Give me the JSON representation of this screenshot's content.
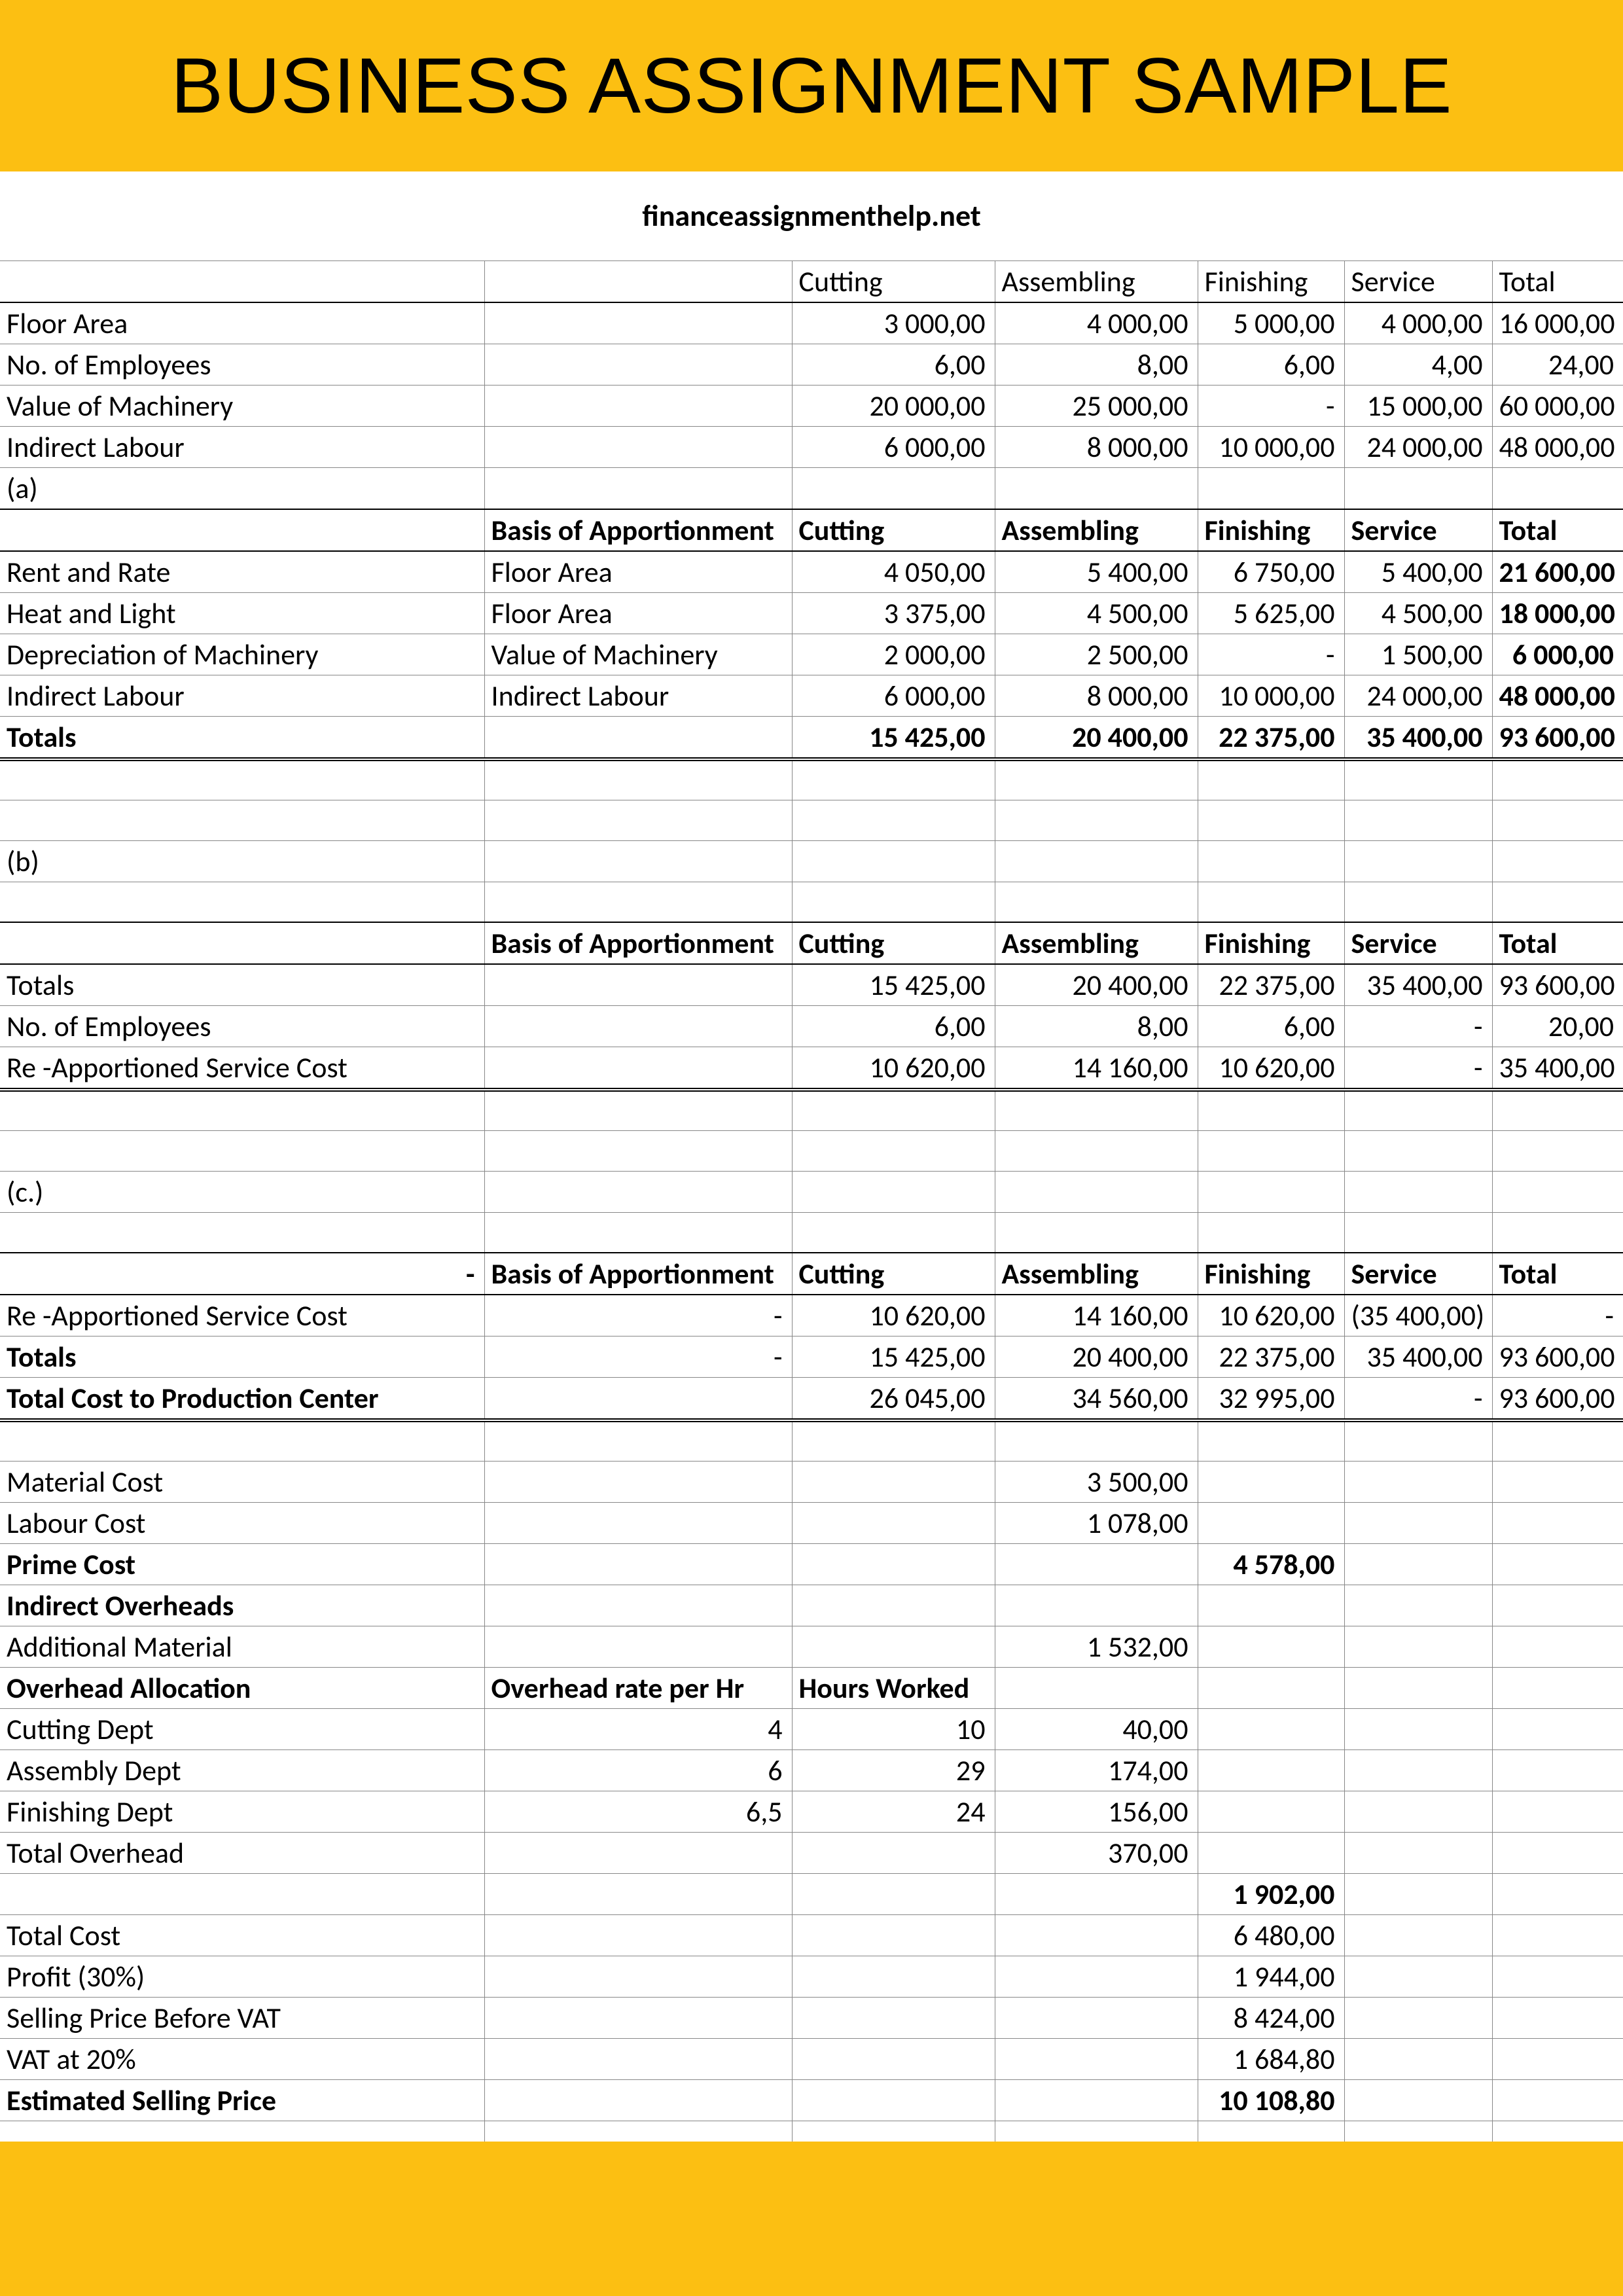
{
  "title": "BUSINESS ASSIGNMENT SAMPLE",
  "subtitle": "financeassignmenthelp.net",
  "columns": [
    "",
    "",
    "Cutting",
    "Assembling",
    "Finishing",
    "Service",
    "Total"
  ],
  "section_a": {
    "header_cols": [
      "",
      "",
      "Cutting",
      "Assembling",
      "Finishing",
      "Service",
      "Total"
    ],
    "rows": [
      {
        "label": "Floor Area",
        "vals": [
          "3 000,00",
          "4 000,00",
          "5 000,00",
          "4 000,00",
          "16 000,00"
        ]
      },
      {
        "label": "No. of Employees",
        "vals": [
          "6,00",
          "8,00",
          "6,00",
          "4,00",
          "24,00"
        ]
      },
      {
        "label": "Value of Machinery",
        "vals": [
          "20 000,00",
          "25 000,00",
          "-",
          "15 000,00",
          "60 000,00"
        ]
      },
      {
        "label": "Indirect Labour",
        "vals": [
          "6 000,00",
          "8 000,00",
          "10 000,00",
          "24 000,00",
          "48 000,00"
        ]
      }
    ],
    "label_a": "(a)",
    "header2": [
      "",
      "Basis of Apportionment",
      "Cutting",
      "Assembling",
      "Finishing",
      "Service",
      "Total"
    ],
    "alloc": [
      {
        "label": "Rent and Rate",
        "basis": "Floor Area",
        "vals": [
          "4 050,00",
          "5 400,00",
          "6 750,00",
          "5 400,00",
          "21 600,00"
        ]
      },
      {
        "label": "Heat and Light",
        "basis": "Floor Area",
        "vals": [
          "3 375,00",
          "4 500,00",
          "5 625,00",
          "4 500,00",
          "18 000,00"
        ]
      },
      {
        "label": "Depreciation of Machinery",
        "basis": "Value of Machinery",
        "vals": [
          "2 000,00",
          "2 500,00",
          "-",
          "1 500,00",
          "6 000,00"
        ]
      },
      {
        "label": "Indirect Labour",
        "basis": "Indirect Labour",
        "vals": [
          "6 000,00",
          "8 000,00",
          "10 000,00",
          "24 000,00",
          "48 000,00"
        ]
      }
    ],
    "totals": {
      "label": "Totals",
      "vals": [
        "15 425,00",
        "20 400,00",
        "22 375,00",
        "35 400,00",
        "93 600,00"
      ]
    }
  },
  "section_b": {
    "label_b": "(b)",
    "header": [
      "",
      "Basis of Apportionment",
      "Cutting",
      "Assembling",
      "Finishing",
      "Service",
      "Total"
    ],
    "rows": [
      {
        "label": "Totals",
        "vals": [
          "15 425,00",
          "20 400,00",
          "22 375,00",
          "35 400,00",
          "93 600,00"
        ]
      },
      {
        "label": "No. of Employees",
        "vals": [
          "6,00",
          "8,00",
          "6,00",
          "-",
          "20,00"
        ]
      },
      {
        "label": "Re -Apportioned Service Cost",
        "vals": [
          "10 620,00",
          "14 160,00",
          "10 620,00",
          "-",
          "35 400,00"
        ]
      }
    ]
  },
  "section_c": {
    "label_c": "(c.)",
    "header": [
      "-",
      "Basis of Apportionment",
      "Cutting",
      "Assembling",
      "Finishing",
      "Service",
      "Total"
    ],
    "rows": [
      {
        "label": "Re -Apportioned Service Cost",
        "basis": "-",
        "vals": [
          "10 620,00",
          "14 160,00",
          "10 620,00",
          "(35 400,00)",
          "-"
        ]
      },
      {
        "label": "Totals",
        "basis": "-",
        "vals": [
          "15 425,00",
          "20 400,00",
          "22 375,00",
          "35 400,00",
          "93 600,00"
        ]
      },
      {
        "label": "Total Cost to Production Center",
        "basis": "",
        "vals": [
          "26 045,00",
          "34 560,00",
          "32 995,00",
          "-",
          "93 600,00"
        ]
      }
    ]
  },
  "costing": {
    "rows": [
      {
        "label": "Material Cost",
        "c3": "3 500,00"
      },
      {
        "label": "Labour Cost",
        "c3": "1 078,00"
      },
      {
        "label": "Prime Cost",
        "c4": "4 578,00",
        "bold": true
      },
      {
        "label": "Indirect Overheads",
        "bold": true
      },
      {
        "label": "Additional Material",
        "c3": "1 532,00"
      }
    ],
    "overhead_header": {
      "label": "Overhead Allocation",
      "basis": "Overhead rate per Hr",
      "c2": "Hours Worked",
      "bold": true
    },
    "overhead_rows": [
      {
        "label": "Cutting Dept",
        "basis": "4",
        "c2": "10",
        "c3": "40,00"
      },
      {
        "label": "Assembly Dept",
        "basis": "6",
        "c2": "29",
        "c3": "174,00"
      },
      {
        "label": "Finishing Dept",
        "basis": "6,5",
        "c2": "24",
        "c3": "156,00"
      }
    ],
    "total_overhead": {
      "label": "Total Overhead",
      "c3": "370,00"
    },
    "after_overhead": {
      "c4": "1 902,00"
    },
    "final": [
      {
        "label": "Total Cost",
        "c4": "6 480,00"
      },
      {
        "label": "Profit (30%)",
        "c4": "1 944,00"
      },
      {
        "label": "Selling Price Before VAT",
        "c4": "8 424,00"
      },
      {
        "label": "VAT at 20%",
        "c4": "1 684,80"
      },
      {
        "label": "Estimated Selling Price",
        "c4": "10 108,80",
        "bold": true
      }
    ]
  },
  "style": {
    "accent": "#fcbf12",
    "grid": "#888888",
    "headerFontSize": 120,
    "bodyFontSize": 44
  }
}
